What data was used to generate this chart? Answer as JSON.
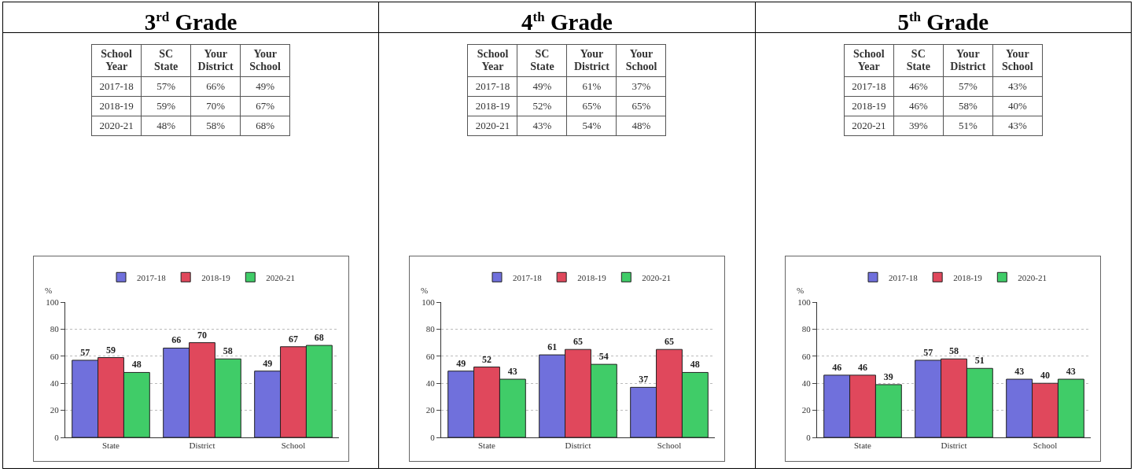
{
  "chart_data": [
    {
      "type": "bar",
      "title": "3$^{rd}$ Grade",
      "ylabel": "%",
      "categories": [
        "State",
        "District",
        "School"
      ],
      "series": [
        {
          "name": "2017-18",
          "color": "#7070dc",
          "values": [
            57,
            66,
            49
          ]
        },
        {
          "name": "2018-19",
          "color": "#e0485c",
          "values": [
            59,
            70,
            67
          ]
        },
        {
          "name": "2020-21",
          "color": "#40cc68",
          "values": [
            48,
            58,
            68
          ]
        }
      ],
      "annotations": [
        "School Year",
        "SC State",
        "Your District",
        "Your School",
        "2017-18",
        "57%",
        "66%",
        "49%",
        "2018-19",
        "59%",
        "70%",
        "67%",
        "2020-21",
        "48%",
        "58%",
        "68%"
      ],
      "ylim": [
        0,
        100
      ],
      "yticks": [
        0,
        20,
        40,
        60,
        80,
        100
      ],
      "grid": "y",
      "legend": "top",
      "data_labels": true
    },
    {
      "type": "bar",
      "title": "4$^{th}$ Grade",
      "ylabel": "%",
      "categories": [
        "State",
        "District",
        "School"
      ],
      "series": [
        {
          "name": "2017-18",
          "color": "#7070dc",
          "values": [
            49,
            61,
            37
          ]
        },
        {
          "name": "2018-19",
          "color": "#e0485c",
          "values": [
            52,
            65,
            65
          ]
        },
        {
          "name": "2020-21",
          "color": "#40cc68",
          "values": [
            43,
            54,
            48
          ]
        }
      ],
      "annotations": [
        "School Year",
        "SC State",
        "Your District",
        "Your School",
        "2017-18",
        "49%",
        "61%",
        "37%",
        "2018-19",
        "52%",
        "65%",
        "65%",
        "2020-21",
        "43%",
        "54%",
        "48%"
      ],
      "ylim": [
        0,
        100
      ],
      "yticks": [
        0,
        20,
        40,
        60,
        80,
        100
      ],
      "grid": "y",
      "legend": "top",
      "data_labels": true
    },
    {
      "type": "bar",
      "title": "5$^{th}$ Grade",
      "ylabel": "%",
      "categories": [
        "State",
        "District",
        "School"
      ],
      "series": [
        {
          "name": "2017-18",
          "color": "#7070dc",
          "values": [
            46,
            57,
            43
          ]
        },
        {
          "name": "2018-19",
          "color": "#e0485c",
          "values": [
            46,
            58,
            40
          ]
        },
        {
          "name": "2020-21",
          "color": "#40cc68",
          "values": [
            39,
            51,
            43
          ]
        }
      ],
      "annotations": [
        "School Year",
        "SC State",
        "Your District",
        "Your School",
        "2017-18",
        "46%",
        "57%",
        "43%",
        "2018-19",
        "46%",
        "58%",
        "40%",
        "2020-21",
        "39%",
        "51%",
        "43%"
      ],
      "ylim": [
        0,
        100
      ],
      "yticks": [
        0,
        20,
        40,
        60,
        80,
        100
      ],
      "grid": "y",
      "legend": "top",
      "data_labels": true
    }
  ]
}
